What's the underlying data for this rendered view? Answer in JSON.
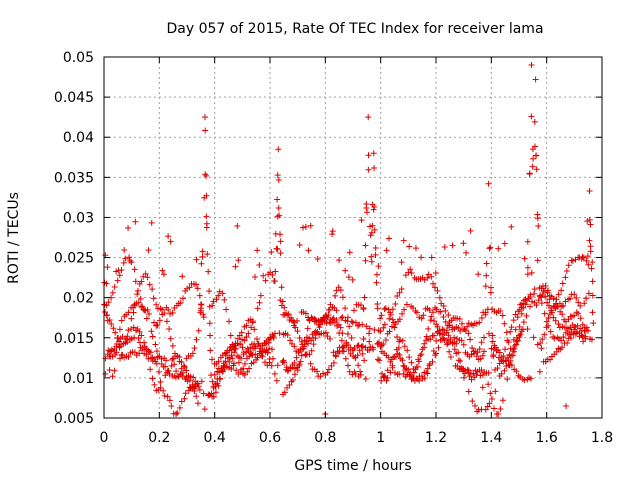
{
  "chart_data": {
    "type": "scatter",
    "title": "Day 057 of 2015, Rate Of TEC Index for receiver lama",
    "xlabel": "GPS time / hours",
    "ylabel": "ROTI / TECUs",
    "xlim": [
      0,
      1.8
    ],
    "ylim": [
      0.005,
      0.05
    ],
    "x_ticks": [
      "0",
      "0.2",
      "0.4",
      "0.6",
      "0.8",
      "1",
      "1.2",
      "1.4",
      "1.6",
      "1.8"
    ],
    "y_ticks": [
      "0.005",
      "0.01",
      "0.015",
      "0.02",
      "0.025",
      "0.03",
      "0.035",
      "0.04",
      "0.045",
      "0.05"
    ],
    "grid": true,
    "marker": "+",
    "marker_color": "#e00000",
    "series": [
      {
        "name": "ROTI",
        "notable_points": [
          {
            "x": 0.365,
            "y": 0.0425
          },
          {
            "x": 0.63,
            "y": 0.0385
          },
          {
            "x": 0.955,
            "y": 0.0425
          },
          {
            "x": 0.975,
            "y": 0.038
          },
          {
            "x": 1.39,
            "y": 0.0342
          },
          {
            "x": 1.545,
            "y": 0.049
          },
          {
            "x": 1.56,
            "y": 0.0472
          },
          {
            "x": 0.005,
            "y": 0.0253
          },
          {
            "x": 0.8,
            "y": 0.0055
          },
          {
            "x": 1.67,
            "y": 0.0065
          },
          {
            "x": 1.755,
            "y": 0.0333
          }
        ],
        "sampling": {
          "count": 1400,
          "x_range": [
            0,
            1.77
          ],
          "typical_y_range": [
            0.007,
            0.022
          ],
          "seed": 57
        }
      }
    ]
  }
}
